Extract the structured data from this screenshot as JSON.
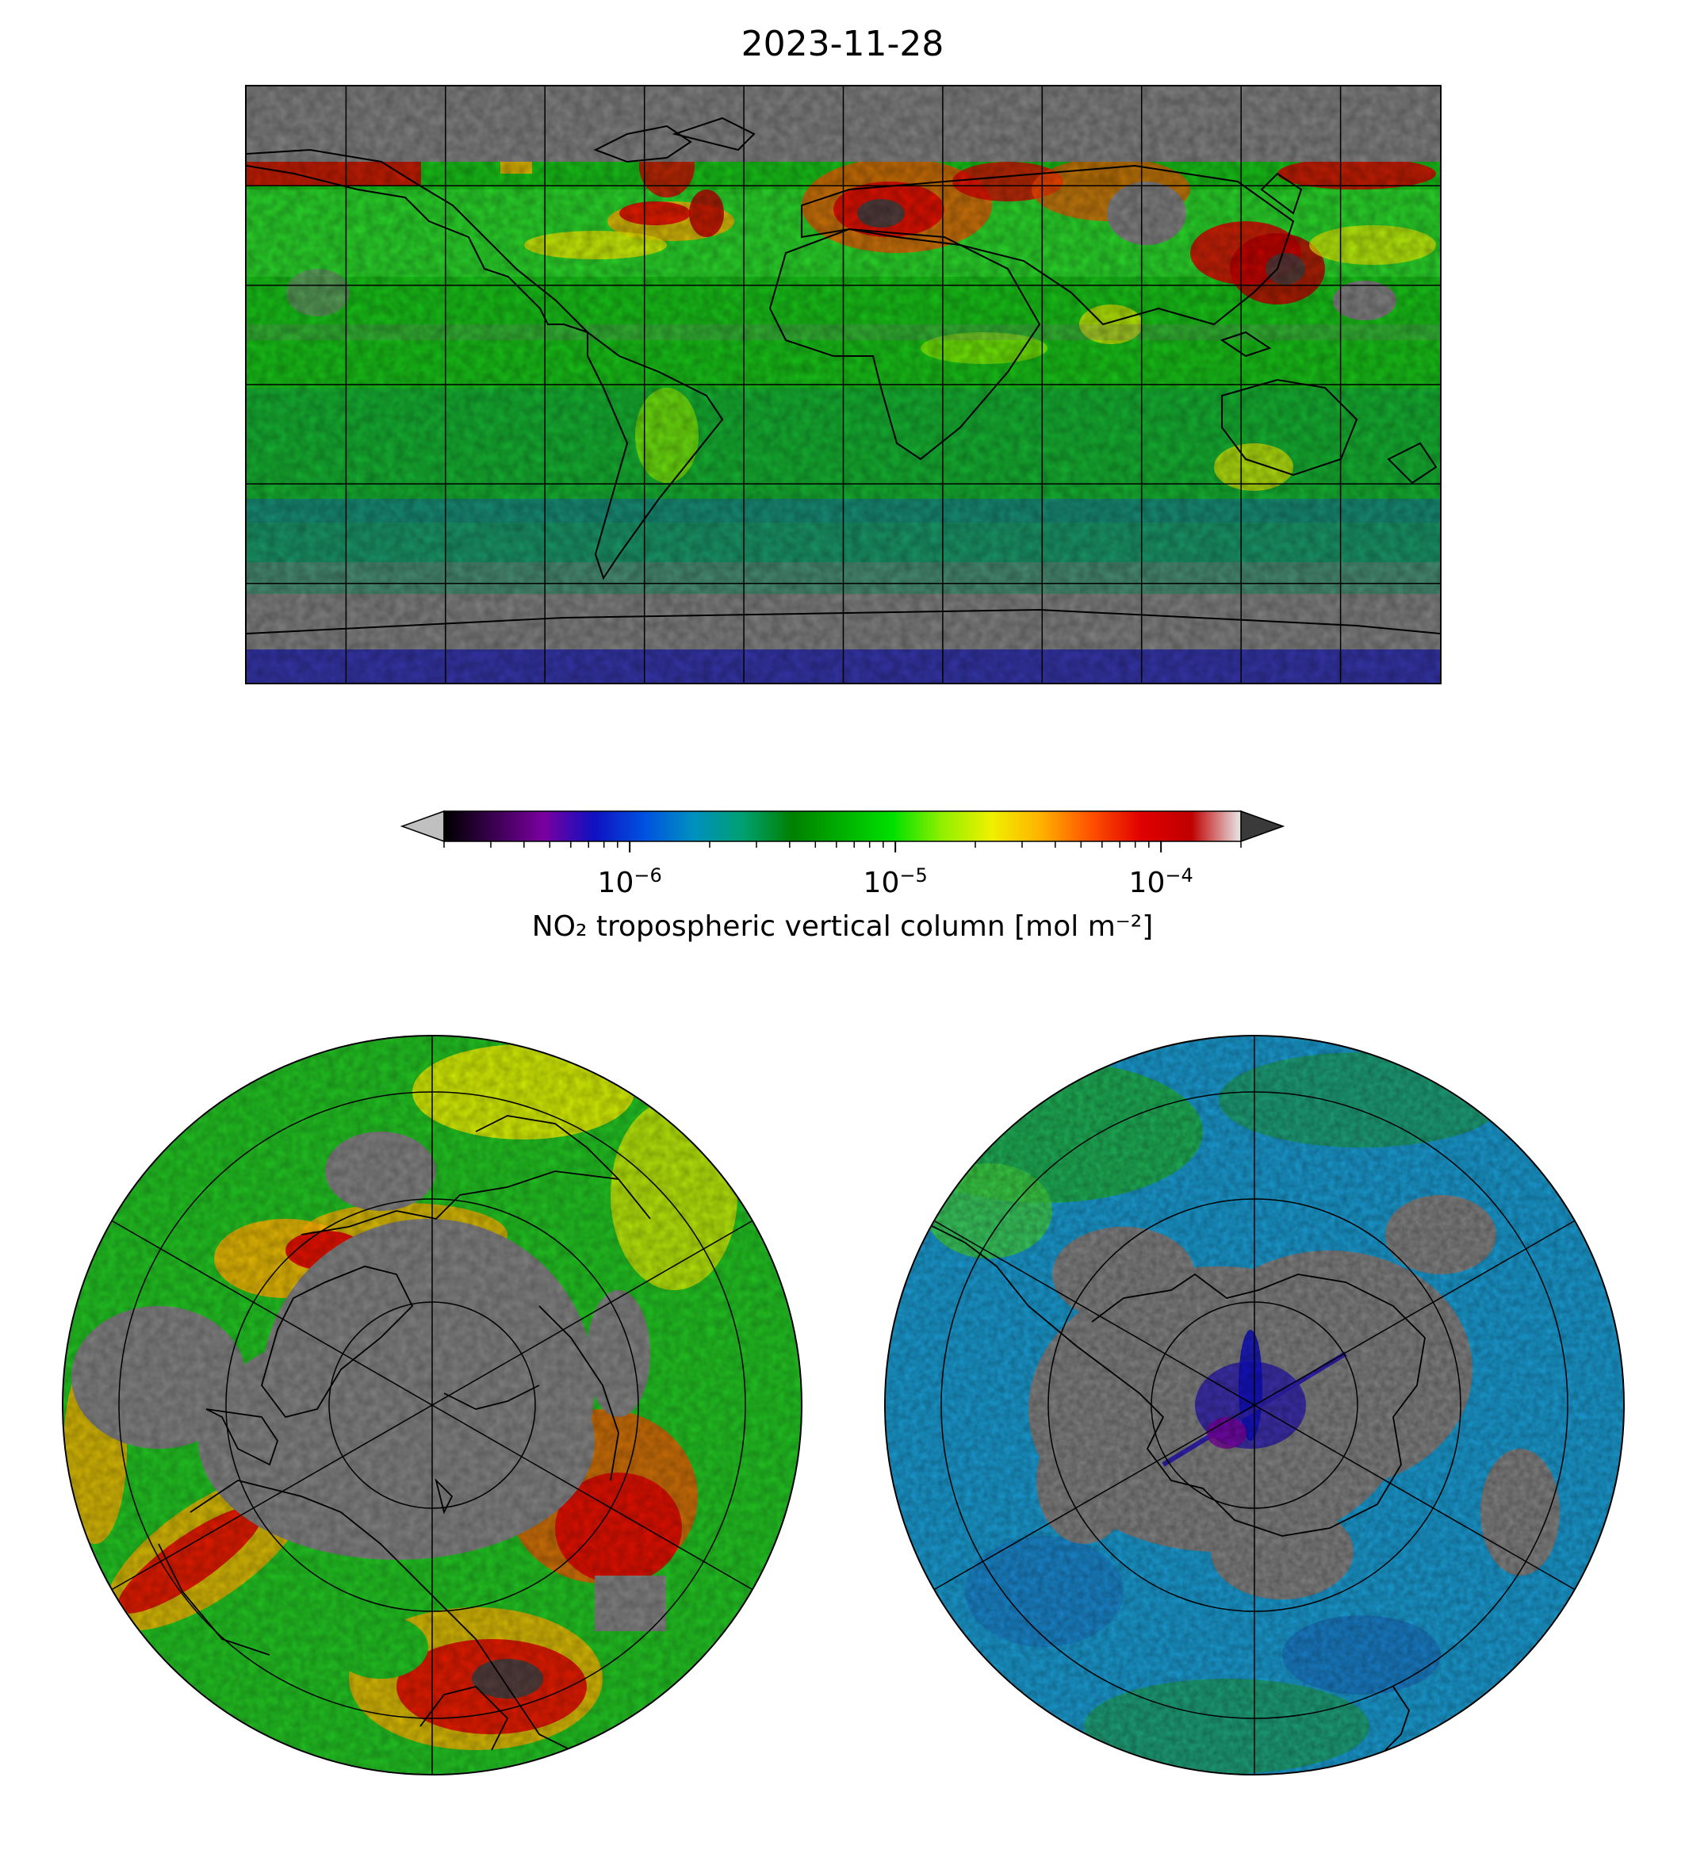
{
  "title": "2023-11-28",
  "colorbar": {
    "label": "NO₂ tropospheric vertical column [mol m⁻²]",
    "scale": "log",
    "range": [
      2e-07,
      0.0002
    ],
    "ticks": [
      {
        "value": 1e-06,
        "base": "10",
        "exp": "−6"
      },
      {
        "value": 1e-05,
        "base": "10",
        "exp": "−5"
      },
      {
        "value": 0.0001,
        "base": "10",
        "exp": "−4"
      }
    ],
    "extend": "both",
    "colors": [
      "#000000",
      "#3a0050",
      "#7a00a0",
      "#1010c0",
      "#0050e0",
      "#0090c0",
      "#00a070",
      "#008000",
      "#00b000",
      "#00e000",
      "#90f000",
      "#f0f000",
      "#ffb000",
      "#ff5000",
      "#e00000",
      "#c00000",
      "#e8e8e8"
    ],
    "under_color": "#c0c0c0",
    "over_color": "#3a3a3a"
  },
  "maps": {
    "global": {
      "projection": "PlateCarree",
      "missing_color": "#808080"
    },
    "north": {
      "projection": "NorthPolarStereo",
      "missing_color": "#808080"
    },
    "south": {
      "projection": "SouthPolarStereo",
      "missing_color": "#808080"
    }
  }
}
